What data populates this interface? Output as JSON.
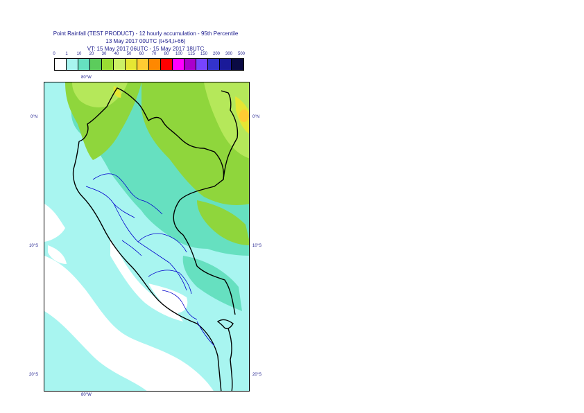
{
  "title": {
    "line1": "Point Rainfall (TEST PRODUCT) - 12 hourly accumulation - 95th Percentile",
    "line2": "13 May 2017 00UTC (t+54,t+66)",
    "line3": "VT: 15 May 2017 06UTC - 15 May 2017 18UTC"
  },
  "legend": {
    "ticks": [
      "0",
      "1",
      "10",
      "20",
      "30",
      "40",
      "50",
      "60",
      "70",
      "80",
      "100",
      "125",
      "150",
      "200",
      "300",
      "500"
    ],
    "colors": [
      "#ffffff",
      "#a8f5f0",
      "#66e0c0",
      "#5ccc5c",
      "#99dd33",
      "#ccf066",
      "#e6e633",
      "#ffcc33",
      "#ff8800",
      "#ff0000",
      "#ff00ff",
      "#aa00cc",
      "#7744ff",
      "#3333cc",
      "#1a1a99",
      "#0a0a44"
    ]
  },
  "axes": {
    "lon_top": "80°W",
    "lon_bottom": "80°W",
    "lat_left": [
      "0°N",
      "10°S",
      "20°S"
    ],
    "lat_right": [
      "0°N",
      "10°S",
      "20°S"
    ]
  },
  "map_colors": {
    "sea": "#a8f5f0",
    "coast_dry": "#ffffff",
    "zone_10_20": "#66e0c0",
    "zone_20_30": "#8fd63c",
    "zone_30_40": "#b5e85a",
    "zone_high": "#e6e633",
    "zone_peak": "#ffcc33",
    "border": "#000000",
    "region": "#0000cc"
  }
}
